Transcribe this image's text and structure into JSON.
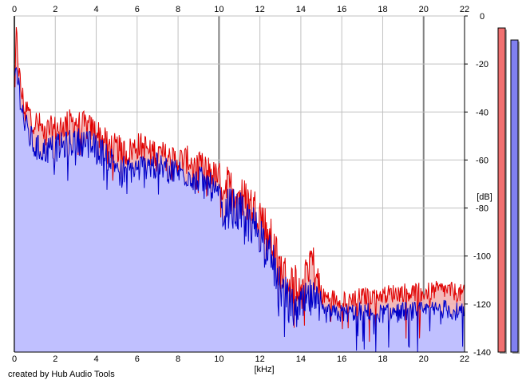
{
  "app": {
    "credit": "created by Hub Audio Tools"
  },
  "colors": {
    "background": "#ffffff",
    "grid": "#c0c0c0",
    "major_grid": "#808080",
    "channel_left": "#e00000",
    "channel_left_fill": "#f2b3b3",
    "channel_right": "#0000c8",
    "channel_right_fill": "#c0c0ff",
    "meter_left": "#f07070",
    "meter_right": "#8080f0"
  },
  "chart_data": {
    "type": "line",
    "xlabel": "[kHz]",
    "ylabel": "[dB]",
    "x_ticks": [
      "0",
      "2",
      "4",
      "6",
      "8",
      "10",
      "12",
      "14",
      "16",
      "18",
      "20",
      "22"
    ],
    "y_ticks": [
      "0",
      "-20",
      "-40",
      "-60",
      "-80",
      "-100",
      "-120",
      "-140"
    ],
    "xlim": [
      0,
      22
    ],
    "ylim": [
      -140,
      0
    ],
    "grid": true,
    "series": [
      {
        "color": "#e00000",
        "x": [
          0,
          0.1,
          0.2,
          0.3,
          0.5,
          1,
          1.5,
          2,
          2.5,
          3,
          3.5,
          4,
          4.5,
          5,
          5.5,
          6,
          6.5,
          7,
          7.5,
          8,
          8.5,
          9,
          9.5,
          10,
          10.5,
          11,
          11.5,
          12,
          12.5,
          13,
          13.5,
          14,
          14.5,
          15,
          16,
          17,
          18,
          19,
          20,
          21,
          22
        ],
        "y": [
          -30,
          -8,
          -20,
          -30,
          -38,
          -44,
          -48,
          -47,
          -45,
          -44,
          -46,
          -48,
          -53,
          -55,
          -57,
          -54,
          -55,
          -57,
          -59,
          -60,
          -60,
          -62,
          -64,
          -68,
          -72,
          -74,
          -78,
          -82,
          -92,
          -105,
          -112,
          -110,
          -100,
          -117,
          -118,
          -117,
          -116,
          -115,
          -115,
          -114,
          -116
        ]
      },
      {
        "color": "#0000c8",
        "x": [
          0,
          0.1,
          0.2,
          0.3,
          0.5,
          1,
          1.5,
          2,
          2.5,
          3,
          3.5,
          4,
          4.5,
          5,
          5.5,
          6,
          6.5,
          7,
          7.5,
          8,
          8.5,
          9,
          9.5,
          10,
          10.5,
          11,
          11.5,
          12,
          12.5,
          13,
          13.5,
          14,
          14.5,
          15,
          16,
          17,
          18,
          19,
          20,
          21,
          22
        ],
        "y": [
          -26,
          -22,
          -28,
          -34,
          -45,
          -55,
          -56,
          -55,
          -54,
          -52,
          -53,
          -55,
          -58,
          -62,
          -64,
          -64,
          -62,
          -63,
          -64,
          -65,
          -66,
          -68,
          -70,
          -76,
          -80,
          -82,
          -86,
          -90,
          -100,
          -112,
          -122,
          -122,
          -118,
          -124,
          -124,
          -123,
          -124,
          -123,
          -123,
          -122,
          -124
        ]
      }
    ],
    "meters": [
      {
        "channel": "L",
        "level_db": -5
      },
      {
        "channel": "R",
        "level_db": -10
      }
    ]
  }
}
